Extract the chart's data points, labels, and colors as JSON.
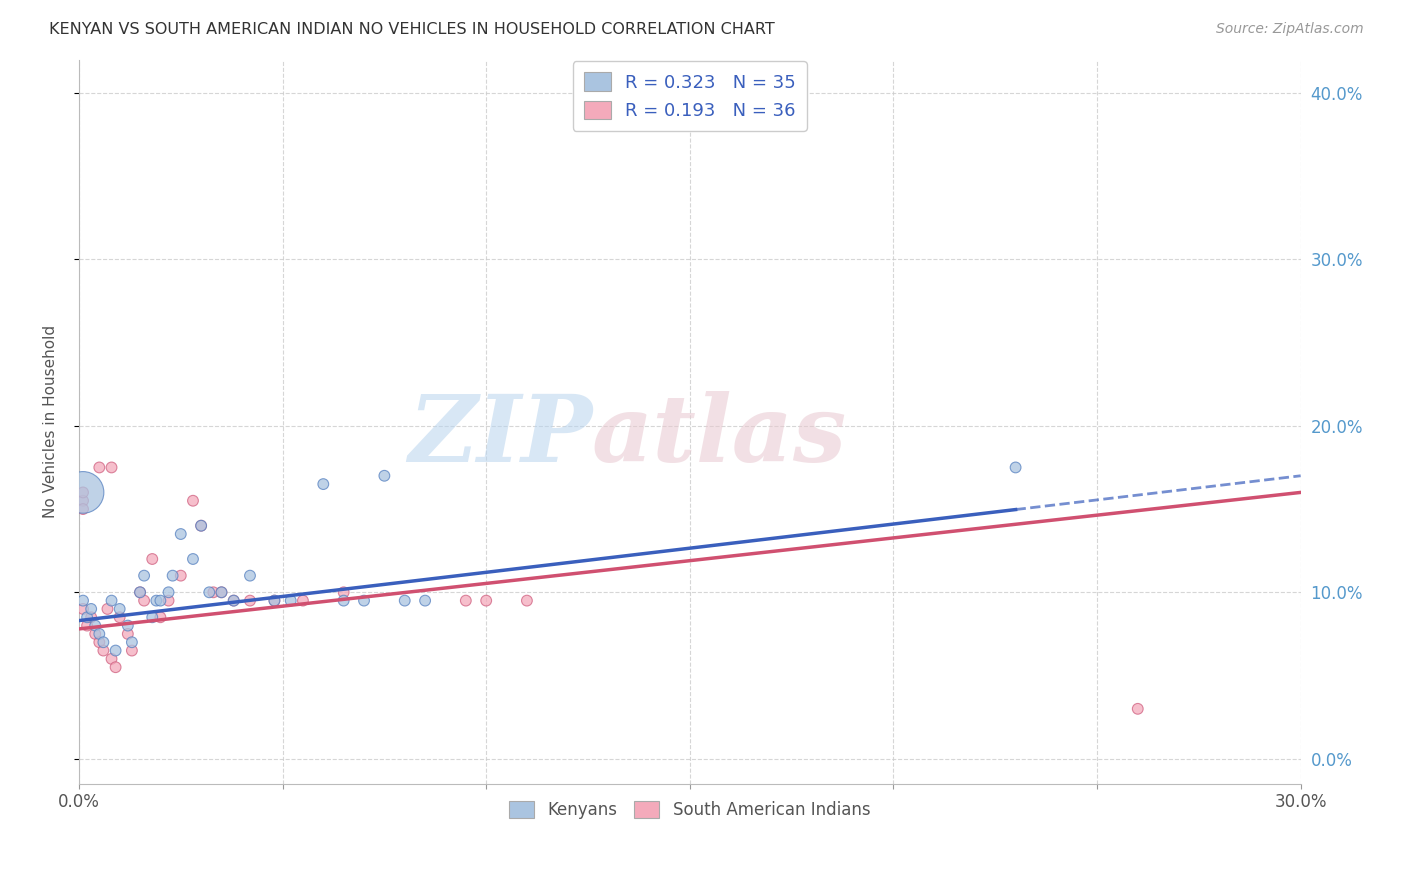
{
  "title": "KENYAN VS SOUTH AMERICAN INDIAN NO VEHICLES IN HOUSEHOLD CORRELATION CHART",
  "source": "Source: ZipAtlas.com",
  "ylabel": "No Vehicles in Household",
  "R_kenyan": 0.323,
  "N_kenyan": 35,
  "R_sa_indian": 0.193,
  "N_sa_indian": 36,
  "kenyan_fill": "#aac4e0",
  "sa_indian_fill": "#f4aabb",
  "kenyan_edge": "#5580c0",
  "sa_indian_edge": "#d06080",
  "kenyan_line_color": "#3a5fbd",
  "sa_indian_line_color": "#d05070",
  "xmin": 0.0,
  "xmax": 0.3,
  "ymin": -0.015,
  "ymax": 0.42,
  "x_ticks": [
    0.0,
    0.05,
    0.1,
    0.15,
    0.2,
    0.25,
    0.3
  ],
  "y_ticks": [
    0.0,
    0.1,
    0.2,
    0.3,
    0.4
  ],
  "kenyan_x": [
    0.001,
    0.002,
    0.003,
    0.004,
    0.005,
    0.006,
    0.008,
    0.009,
    0.01,
    0.012,
    0.013,
    0.015,
    0.016,
    0.018,
    0.019,
    0.02,
    0.022,
    0.023,
    0.025,
    0.028,
    0.03,
    0.032,
    0.035,
    0.038,
    0.042,
    0.048,
    0.052,
    0.06,
    0.065,
    0.07,
    0.075,
    0.08,
    0.085,
    0.23,
    0.001
  ],
  "kenyan_y": [
    0.095,
    0.085,
    0.09,
    0.08,
    0.075,
    0.07,
    0.095,
    0.065,
    0.09,
    0.08,
    0.07,
    0.1,
    0.11,
    0.085,
    0.095,
    0.095,
    0.1,
    0.11,
    0.135,
    0.12,
    0.14,
    0.1,
    0.1,
    0.095,
    0.11,
    0.095,
    0.095,
    0.165,
    0.095,
    0.095,
    0.17,
    0.095,
    0.095,
    0.175,
    0.16
  ],
  "kenyan_size": [
    60,
    60,
    60,
    60,
    60,
    60,
    60,
    60,
    60,
    60,
    60,
    60,
    60,
    60,
    60,
    60,
    60,
    60,
    60,
    60,
    60,
    60,
    60,
    60,
    60,
    60,
    60,
    60,
    60,
    60,
    60,
    60,
    60,
    60,
    900
  ],
  "sa_indian_x": [
    0.001,
    0.002,
    0.003,
    0.004,
    0.005,
    0.006,
    0.007,
    0.008,
    0.009,
    0.01,
    0.012,
    0.013,
    0.015,
    0.016,
    0.018,
    0.02,
    0.022,
    0.025,
    0.028,
    0.03,
    0.033,
    0.035,
    0.038,
    0.042,
    0.048,
    0.055,
    0.065,
    0.001,
    0.001,
    0.001,
    0.095,
    0.1,
    0.11,
    0.26,
    0.005,
    0.008
  ],
  "sa_indian_y": [
    0.09,
    0.08,
    0.085,
    0.075,
    0.07,
    0.065,
    0.09,
    0.06,
    0.055,
    0.085,
    0.075,
    0.065,
    0.1,
    0.095,
    0.12,
    0.085,
    0.095,
    0.11,
    0.155,
    0.14,
    0.1,
    0.1,
    0.095,
    0.095,
    0.095,
    0.095,
    0.1,
    0.155,
    0.15,
    0.16,
    0.095,
    0.095,
    0.095,
    0.03,
    0.175,
    0.175
  ],
  "sa_indian_size": [
    60,
    60,
    60,
    60,
    60,
    60,
    60,
    60,
    60,
    60,
    60,
    60,
    60,
    60,
    60,
    60,
    60,
    60,
    60,
    60,
    60,
    60,
    60,
    60,
    60,
    60,
    60,
    60,
    60,
    60,
    60,
    60,
    60,
    60,
    60,
    60
  ],
  "background_color": "#ffffff",
  "grid_color": "#cccccc",
  "right_tick_color": "#5599cc"
}
